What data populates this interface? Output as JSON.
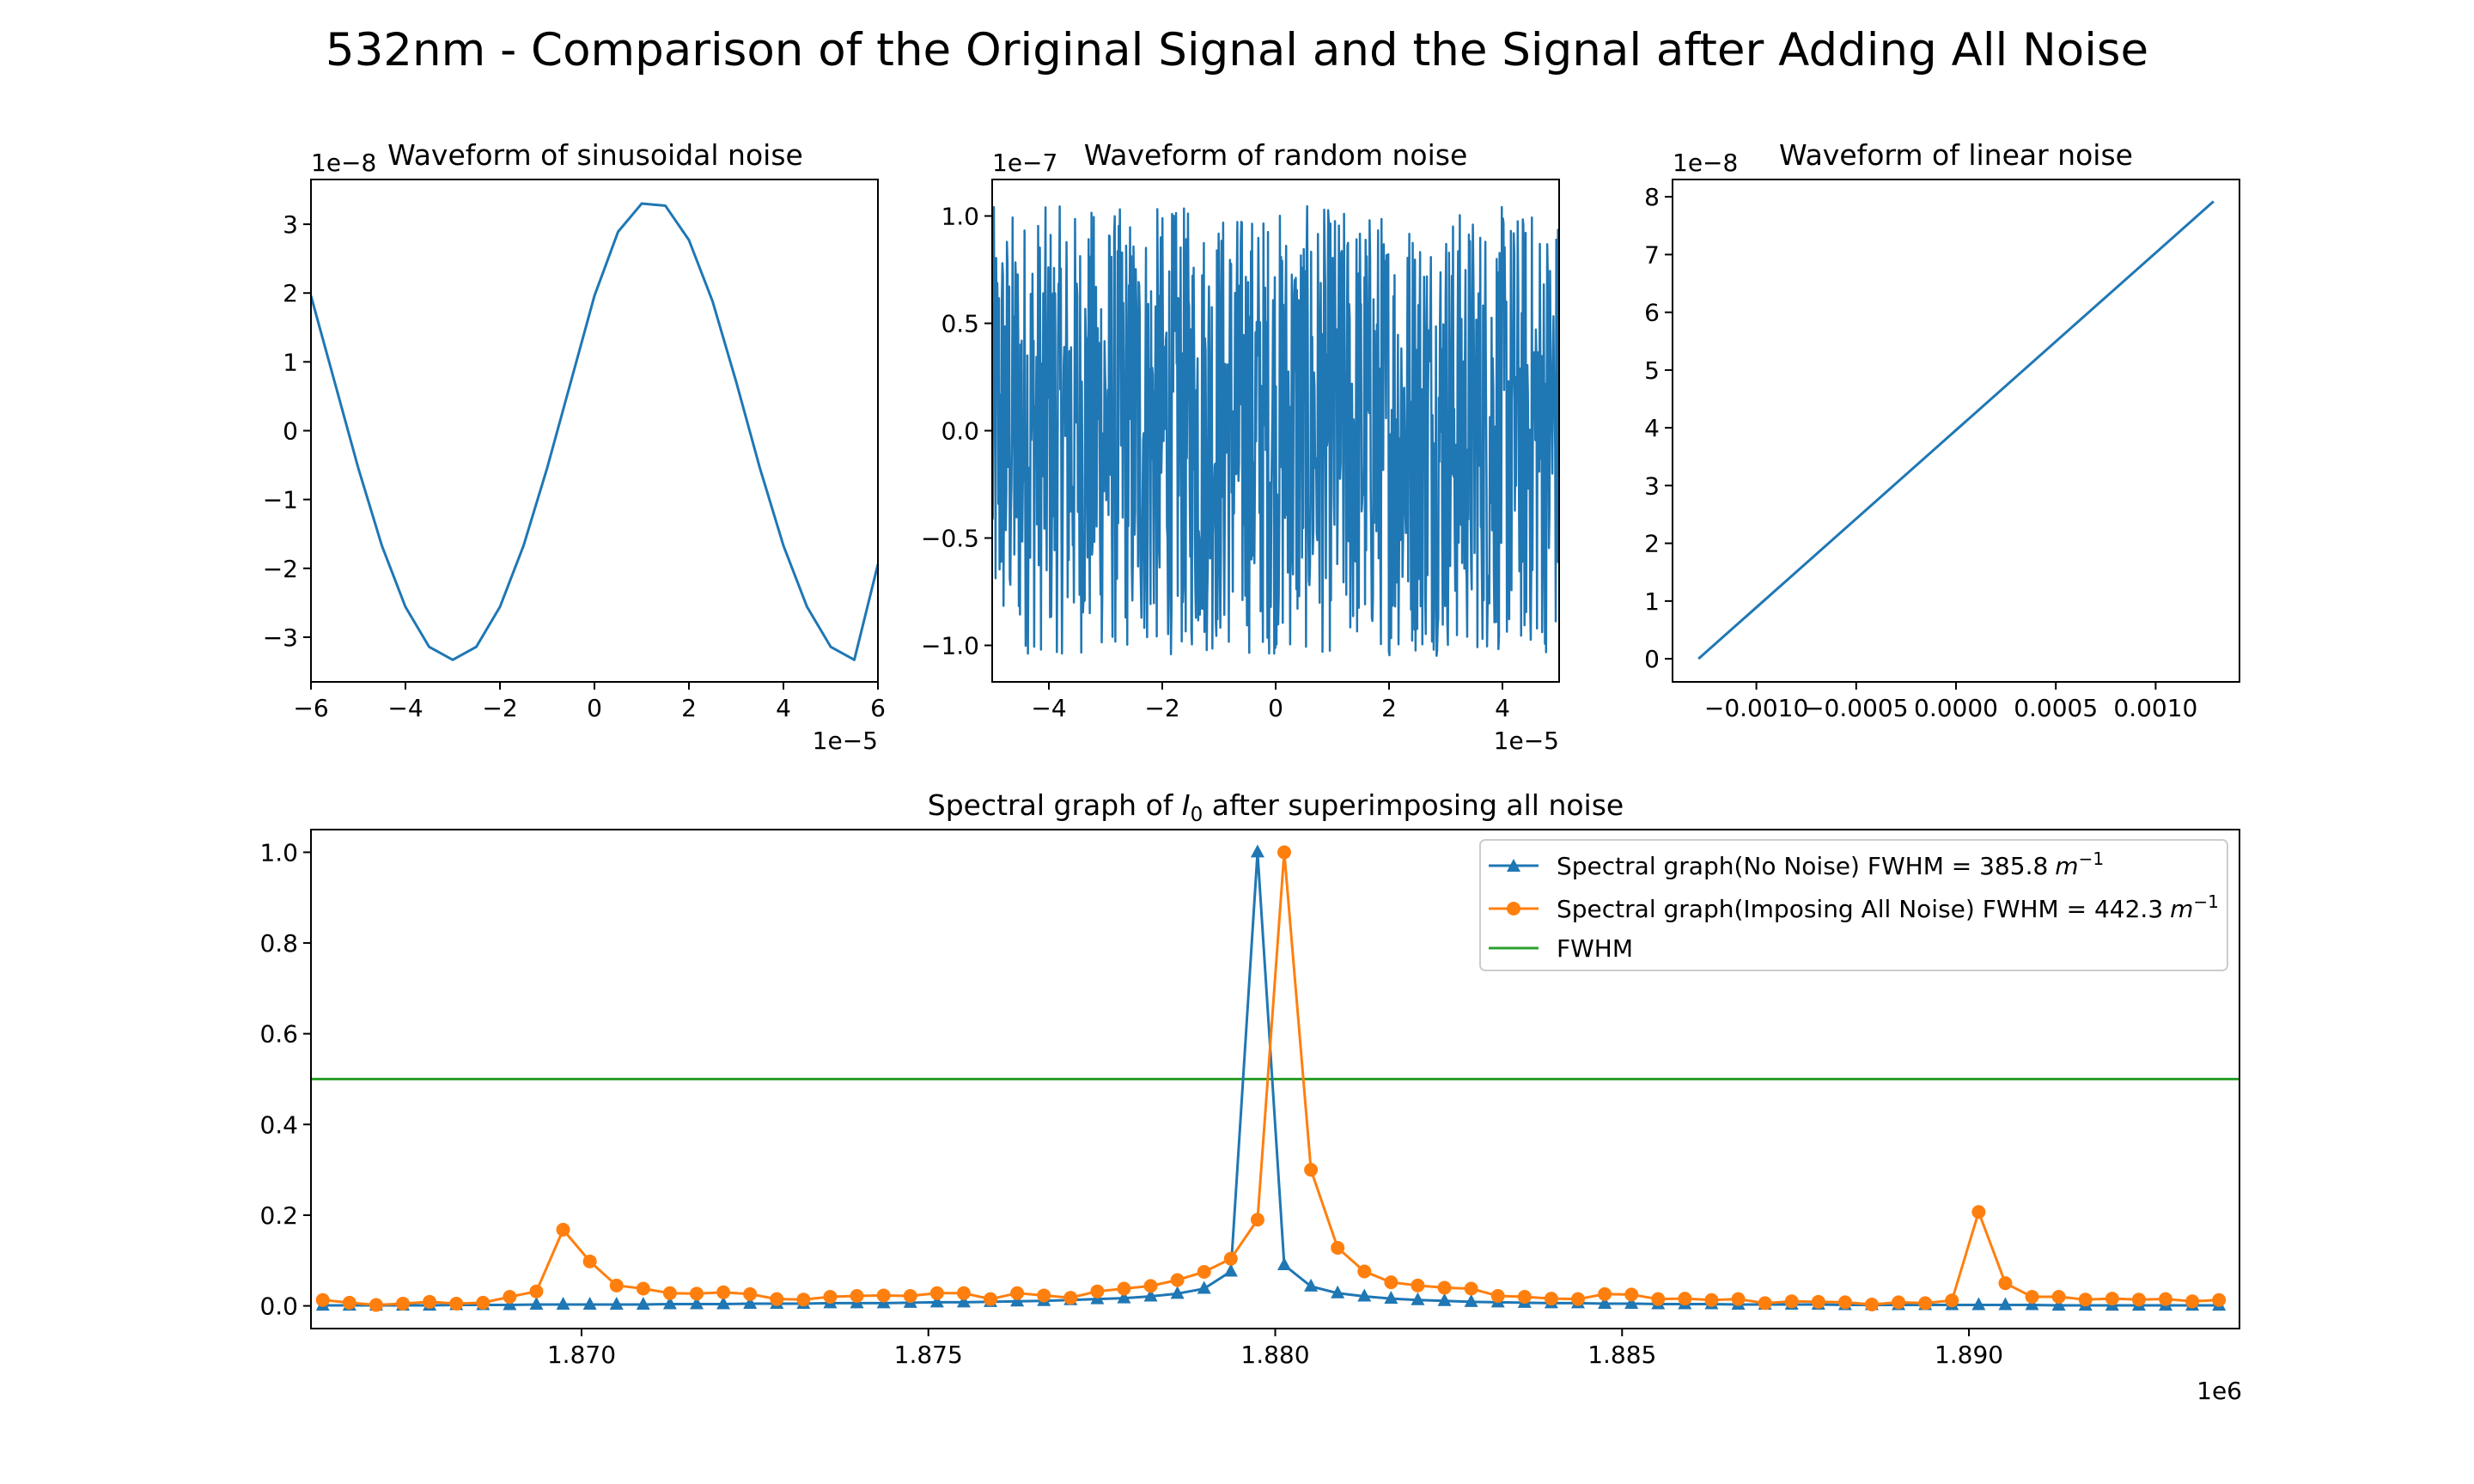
{
  "figure": {
    "suptitle": "532nm - Comparison of the Original Signal and the Signal after Adding All Noise"
  },
  "colors": {
    "blue": "#1f77b4",
    "orange": "#ff7f0e",
    "green": "#2ca02c",
    "axis": "#000000"
  },
  "chart_data": [
    {
      "id": "sin",
      "type": "line",
      "title": "Waveform of sinusoidal noise",
      "xlim": [
        -6e-05,
        6e-05
      ],
      "ylim": [
        -3.65e-08,
        3.65e-08
      ],
      "x_offset_label": "1e−5",
      "y_offset_label": "1e−8",
      "xticks": [
        {
          "v": -6e-05,
          "label": "−6"
        },
        {
          "v": -4e-05,
          "label": "−4"
        },
        {
          "v": -2e-05,
          "label": "−2"
        },
        {
          "v": 0,
          "label": "0"
        },
        {
          "v": 2e-05,
          "label": "2"
        },
        {
          "v": 4e-05,
          "label": "4"
        },
        {
          "v": 6e-05,
          "label": "6"
        }
      ],
      "yticks": [
        {
          "v": -3e-08,
          "label": "−3"
        },
        {
          "v": -2e-08,
          "label": "−2"
        },
        {
          "v": -1e-08,
          "label": "−1"
        },
        {
          "v": 0,
          "label": "0"
        },
        {
          "v": 1e-08,
          "label": "1"
        },
        {
          "v": 2e-08,
          "label": "2"
        },
        {
          "v": 3e-08,
          "label": "3"
        }
      ],
      "series": [
        {
          "color": "#1f77b4",
          "x": [
            -6e-05,
            -5.5e-05,
            -5e-05,
            -4.5e-05,
            -4e-05,
            -3.5e-05,
            -3e-05,
            -2.5e-05,
            -2e-05,
            -1.5e-05,
            -1e-05,
            -5e-06,
            0,
            5e-06,
            1e-05,
            1.5e-05,
            2e-05,
            2.5e-05,
            3e-05,
            3.5e-05,
            4e-05,
            4.5e-05,
            5e-05,
            5.5e-05,
            6e-05
          ],
          "y": [
            1.96e-08,
            7.1e-09,
            -5.4e-09,
            -1.67e-08,
            -2.56e-08,
            -3.14e-08,
            -3.33e-08,
            -3.14e-08,
            -2.56e-08,
            -1.67e-08,
            -5.4e-09,
            7.1e-09,
            1.96e-08,
            2.89e-08,
            3.3e-08,
            3.27e-08,
            2.77e-08,
            1.88e-08,
            7.1e-09,
            -5.4e-09,
            -1.67e-08,
            -2.56e-08,
            -3.14e-08,
            -3.33e-08,
            -1.94e-08
          ]
        }
      ]
    },
    {
      "id": "random",
      "type": "line",
      "title": "Waveform of random noise",
      "xlim": [
        -5e-05,
        5e-05
      ],
      "ylim": [
        -1.17e-07,
        1.17e-07
      ],
      "x_offset_label": "1e−5",
      "y_offset_label": "1e−7",
      "xticks": [
        {
          "v": -4e-05,
          "label": "−4"
        },
        {
          "v": -2e-05,
          "label": "−2"
        },
        {
          "v": 0,
          "label": "0"
        },
        {
          "v": 2e-05,
          "label": "2"
        },
        {
          "v": 4e-05,
          "label": "4"
        }
      ],
      "yticks": [
        {
          "v": -1e-07,
          "label": "−1.0"
        },
        {
          "v": -5e-08,
          "label": "−0.5"
        },
        {
          "v": 0,
          "label": "0.0"
        },
        {
          "v": 5e-08,
          "label": "0.5"
        },
        {
          "v": 1e-07,
          "label": "1.0"
        }
      ],
      "noise": {
        "x_start": -5e-05,
        "x_end": 5e-05,
        "n_points": 1000,
        "amplitude": 1.05e-07,
        "distribution": "uniform"
      },
      "series": [
        {
          "color": "#1f77b4"
        }
      ]
    },
    {
      "id": "linear",
      "type": "line",
      "title": "Waveform of linear noise",
      "xlim": [
        -0.00142,
        0.00142
      ],
      "ylim": [
        -4e-09,
        8.3e-08
      ],
      "x_offset_label": "",
      "y_offset_label": "1e−8",
      "xticks": [
        {
          "v": -0.001,
          "label": "−0.0010"
        },
        {
          "v": -0.0005,
          "label": "−0.0005"
        },
        {
          "v": 0,
          "label": "0.0000"
        },
        {
          "v": 0.0005,
          "label": "0.0005"
        },
        {
          "v": 0.001,
          "label": "0.0010"
        }
      ],
      "yticks": [
        {
          "v": 0,
          "label": "0"
        },
        {
          "v": 1e-08,
          "label": "1"
        },
        {
          "v": 2e-08,
          "label": "2"
        },
        {
          "v": 3e-08,
          "label": "3"
        },
        {
          "v": 4e-08,
          "label": "4"
        },
        {
          "v": 5e-08,
          "label": "5"
        },
        {
          "v": 6e-08,
          "label": "6"
        },
        {
          "v": 7e-08,
          "label": "7"
        },
        {
          "v": 8e-08,
          "label": "8"
        }
      ],
      "series": [
        {
          "color": "#1f77b4",
          "x": [
            -0.00129,
            0.00129
          ],
          "y": [
            0,
            7.92e-08
          ]
        }
      ]
    },
    {
      "id": "spectrum",
      "type": "line",
      "title_prefix": "Spectral graph of ",
      "title_var": "I",
      "title_sub": "0",
      "title_suffix": " after superimposing all noise",
      "xlim": [
        1866100,
        1893900
      ],
      "ylim": [
        -0.05,
        1.05
      ],
      "x_offset_label": "1e6",
      "y_offset_label": "",
      "legend_position": "upper right",
      "xticks": [
        {
          "v": 1870000,
          "label": "1.870"
        },
        {
          "v": 1875000,
          "label": "1.875"
        },
        {
          "v": 1880000,
          "label": "1.880"
        },
        {
          "v": 1885000,
          "label": "1.885"
        },
        {
          "v": 1890000,
          "label": "1.890"
        }
      ],
      "yticks": [
        {
          "v": 0,
          "label": "0.0"
        },
        {
          "v": 0.2,
          "label": "0.2"
        },
        {
          "v": 0.4,
          "label": "0.4"
        },
        {
          "v": 0.6,
          "label": "0.6"
        },
        {
          "v": 0.8,
          "label": "0.8"
        },
        {
          "v": 1.0,
          "label": "1.0"
        }
      ],
      "x": [
        1866270,
        1866655,
        1867040,
        1867425,
        1867810,
        1868195,
        1868580,
        1868965,
        1869350,
        1869735,
        1870120,
        1870505,
        1870890,
        1871275,
        1871660,
        1872045,
        1872430,
        1872815,
        1873200,
        1873585,
        1873970,
        1874355,
        1874740,
        1875125,
        1875510,
        1875895,
        1876280,
        1876665,
        1877050,
        1877435,
        1877820,
        1878205,
        1878590,
        1878975,
        1879360,
        1879745,
        1880130,
        1880515,
        1880900,
        1881285,
        1881670,
        1882055,
        1882440,
        1882825,
        1883210,
        1883595,
        1883980,
        1884365,
        1884750,
        1885135,
        1885520,
        1885905,
        1886290,
        1886675,
        1887060,
        1887445,
        1887830,
        1888215,
        1888600,
        1888985,
        1889370,
        1889755,
        1890140,
        1890525,
        1890910,
        1891295,
        1891680,
        1892065,
        1892450,
        1892835,
        1893220,
        1893605
      ],
      "series": [
        {
          "name": "Spectral graph(No Noise) FWHM = 385.8",
          "unit_base": "m",
          "unit_exp": "−1",
          "color": "#1f77b4",
          "marker": "triangle",
          "y": [
            0.001,
            0.001,
            0.001,
            0.001,
            0.001,
            0.002,
            0.002,
            0.002,
            0.003,
            0.003,
            0.003,
            0.003,
            0.003,
            0.004,
            0.004,
            0.004,
            0.005,
            0.005,
            0.005,
            0.006,
            0.006,
            0.006,
            0.007,
            0.008,
            0.008,
            0.009,
            0.01,
            0.011,
            0.013,
            0.015,
            0.017,
            0.021,
            0.027,
            0.038,
            0.076,
            1.0,
            0.09,
            0.043,
            0.028,
            0.021,
            0.016,
            0.013,
            0.011,
            0.009,
            0.008,
            0.007,
            0.006,
            0.006,
            0.005,
            0.005,
            0.004,
            0.004,
            0.004,
            0.003,
            0.003,
            0.003,
            0.003,
            0.002,
            0.002,
            0.002,
            0.002,
            0.002,
            0.002,
            0.002,
            0.002,
            0.001,
            0.001,
            0.001,
            0.001,
            0.001,
            0.001,
            0.001
          ]
        },
        {
          "name": "Spectral graph(Imposing All Noise) FWHM = 442.3",
          "unit_base": "m",
          "unit_exp": "−1",
          "color": "#ff7f0e",
          "marker": "circle",
          "y": [
            0.013,
            0.007,
            0.002,
            0.005,
            0.009,
            0.005,
            0.007,
            0.02,
            0.032,
            0.168,
            0.098,
            0.045,
            0.038,
            0.028,
            0.027,
            0.03,
            0.026,
            0.015,
            0.014,
            0.02,
            0.022,
            0.023,
            0.022,
            0.028,
            0.028,
            0.015,
            0.028,
            0.023,
            0.018,
            0.032,
            0.038,
            0.044,
            0.057,
            0.075,
            0.104,
            0.19,
            1.0,
            0.3,
            0.128,
            0.076,
            0.052,
            0.045,
            0.04,
            0.038,
            0.022,
            0.02,
            0.016,
            0.015,
            0.026,
            0.025,
            0.015,
            0.016,
            0.013,
            0.015,
            0.006,
            0.01,
            0.009,
            0.008,
            0.003,
            0.008,
            0.006,
            0.012,
            0.207,
            0.05,
            0.02,
            0.02,
            0.014,
            0.016,
            0.014,
            0.015,
            0.01,
            0.013
          ]
        },
        {
          "name": "FWHM",
          "color": "#2ca02c",
          "marker": "none",
          "hline": 0.5
        }
      ]
    }
  ]
}
